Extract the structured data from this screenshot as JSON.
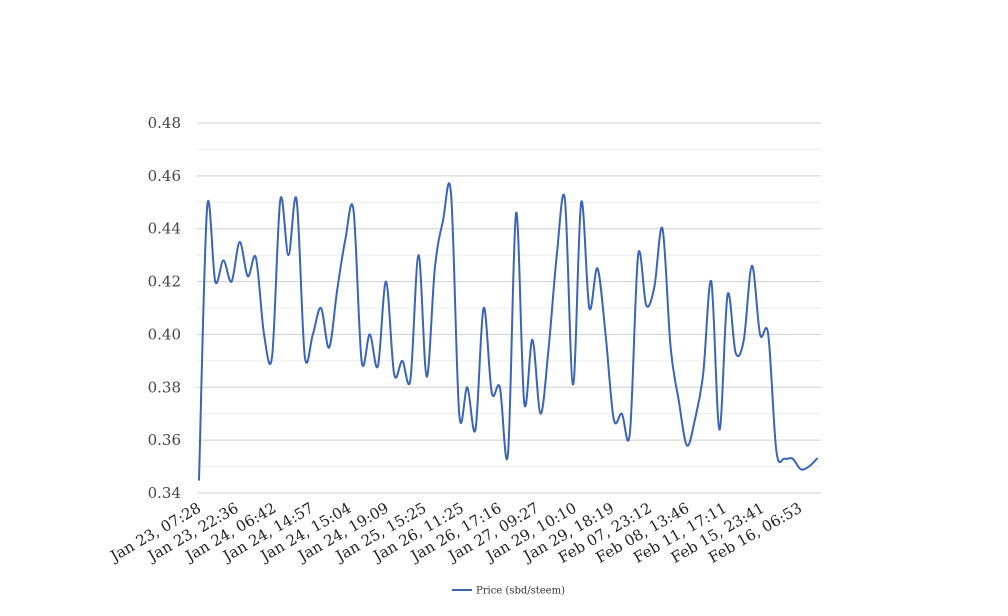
{
  "chart_data": {
    "type": "line",
    "title": "",
    "xlabel": "",
    "ylabel": "",
    "ylim": [
      0.34,
      0.48
    ],
    "y_ticks": [
      "0.34",
      "0.36",
      "0.38",
      "0.40",
      "0.42",
      "0.44",
      "0.46",
      "0.48"
    ],
    "x_tick_labels": [
      "Jan 23, 07:28",
      "Jan 23, 22:36",
      "Jan 24, 06:42",
      "Jan 24, 14:57",
      "Jan 24, 15:04",
      "Jan 24, 19:09",
      "Jan 25, 15:25",
      "Jan 26, 11:25",
      "Jan 26, 17:16",
      "Jan 27, 09:27",
      "Jan 29, 10:10",
      "Jan 29, 18:19",
      "Feb 07, 23:12",
      "Feb 08, 13:46",
      "Feb 11, 17:11",
      "Feb 15, 23:41",
      "Feb 16, 06:53"
    ],
    "grid": true,
    "legend_position": "bottom",
    "line_color": "#3a64b8",
    "series": [
      {
        "name": "Price (sbd/steem)",
        "values": [
          0.345,
          0.448,
          0.42,
          0.428,
          0.42,
          0.435,
          0.422,
          0.429,
          0.4,
          0.392,
          0.451,
          0.43,
          0.451,
          0.392,
          0.4,
          0.41,
          0.395,
          0.417,
          0.436,
          0.447,
          0.39,
          0.4,
          0.388,
          0.42,
          0.385,
          0.39,
          0.383,
          0.43,
          0.384,
          0.425,
          0.443,
          0.453,
          0.37,
          0.38,
          0.364,
          0.41,
          0.378,
          0.38,
          0.355,
          0.446,
          0.374,
          0.398,
          0.37,
          0.395,
          0.43,
          0.451,
          0.381,
          0.45,
          0.41,
          0.425,
          0.4,
          0.368,
          0.37,
          0.363,
          0.43,
          0.411,
          0.418,
          0.44,
          0.395,
          0.375,
          0.358,
          0.368,
          0.385,
          0.42,
          0.364,
          0.415,
          0.393,
          0.398,
          0.426,
          0.4,
          0.4,
          0.356,
          0.353,
          0.353,
          0.349,
          0.35,
          0.353
        ]
      }
    ]
  }
}
